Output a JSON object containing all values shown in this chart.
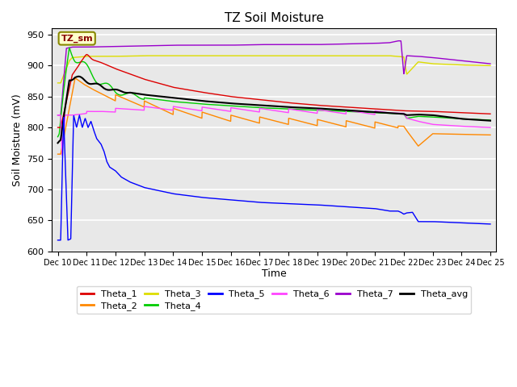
{
  "title": "TZ Soil Moisture",
  "xlabel": "Time",
  "ylabel": "Soil Moisture (mV)",
  "ylim": [
    600,
    960
  ],
  "yticks": [
    600,
    650,
    700,
    750,
    800,
    850,
    900,
    950
  ],
  "xtick_labels": [
    "Dec 10",
    "Dec 11",
    "Dec 12",
    "Dec 13",
    "Dec 14",
    "Dec 15",
    "Dec 16",
    "Dec 17",
    "Dec 18",
    "Dec 19",
    "Dec 20",
    "Dec 21",
    "Dec 22",
    "Dec 23",
    "Dec 24",
    "Dec 25"
  ],
  "plot_bg_color": "#e8e8e8",
  "legend_label": "TZ_sm",
  "series_colors": {
    "Theta_1": "#dd0000",
    "Theta_2": "#ff8800",
    "Theta_3": "#dddd00",
    "Theta_4": "#00cc00",
    "Theta_5": "#0000ff",
    "Theta_6": "#ff44ff",
    "Theta_7": "#9900cc",
    "Theta_avg": "#000000"
  },
  "legend_order": [
    "Theta_1",
    "Theta_2",
    "Theta_3",
    "Theta_4",
    "Theta_5",
    "Theta_6",
    "Theta_7",
    "Theta_avg"
  ]
}
